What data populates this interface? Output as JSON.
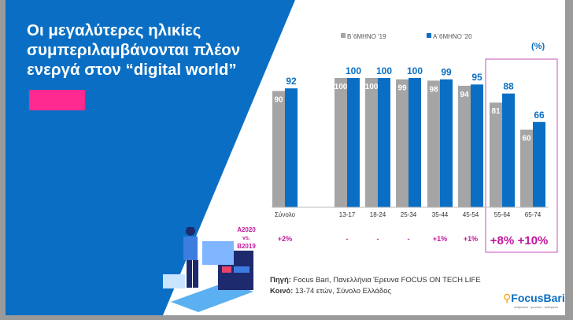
{
  "title": "Οι μεγαλύτερες ηλικίες συμπεριλαμβάνονται πλέον ενεργά στον “digital world”",
  "unit_label": "(%)",
  "comparison_label": [
    "A2020",
    "vs.",
    "B2019"
  ],
  "source": {
    "label": "Πηγή:",
    "text": " Focus Bari, Πανελλήνια Έρευνα FOCUS ON TECH LIFE"
  },
  "audience": {
    "label": "Κοινό:",
    "text": " 13-74 ετών, Σύνολο Ελλάδος"
  },
  "logo": {
    "name": "FocusBari",
    "tagline": "ανθρωποι · γνωσεις · δεδομενα"
  },
  "colors": {
    "blue": "#0a6fc4",
    "gray": "#a5a5a5",
    "magenta": "#c0179a",
    "highlight": "#d070c8",
    "pink": "#ff2a8f"
  },
  "chart_data": {
    "type": "bar",
    "categories": [
      "Σύνολο",
      "13-17",
      "18-24",
      "25-34",
      "35-44",
      "45-54",
      "55-64",
      "65-74"
    ],
    "series": [
      {
        "name": "B΄6ΜΗΝΟ '19",
        "values": [
          90,
          100,
          100,
          99,
          98,
          94,
          81,
          60
        ]
      },
      {
        "name": "A΄6ΜΗΝΟ '20",
        "values": [
          92,
          100,
          100,
          100,
          99,
          95,
          88,
          66
        ]
      }
    ],
    "differences": [
      "+2%",
      "-",
      "-",
      "-",
      "+1%",
      "+1%",
      "+8%",
      "+10%"
    ],
    "highlighted_categories": [
      "55-64",
      "65-74"
    ],
    "ylim": [
      0,
      100
    ],
    "legend": "top",
    "grid": false
  }
}
